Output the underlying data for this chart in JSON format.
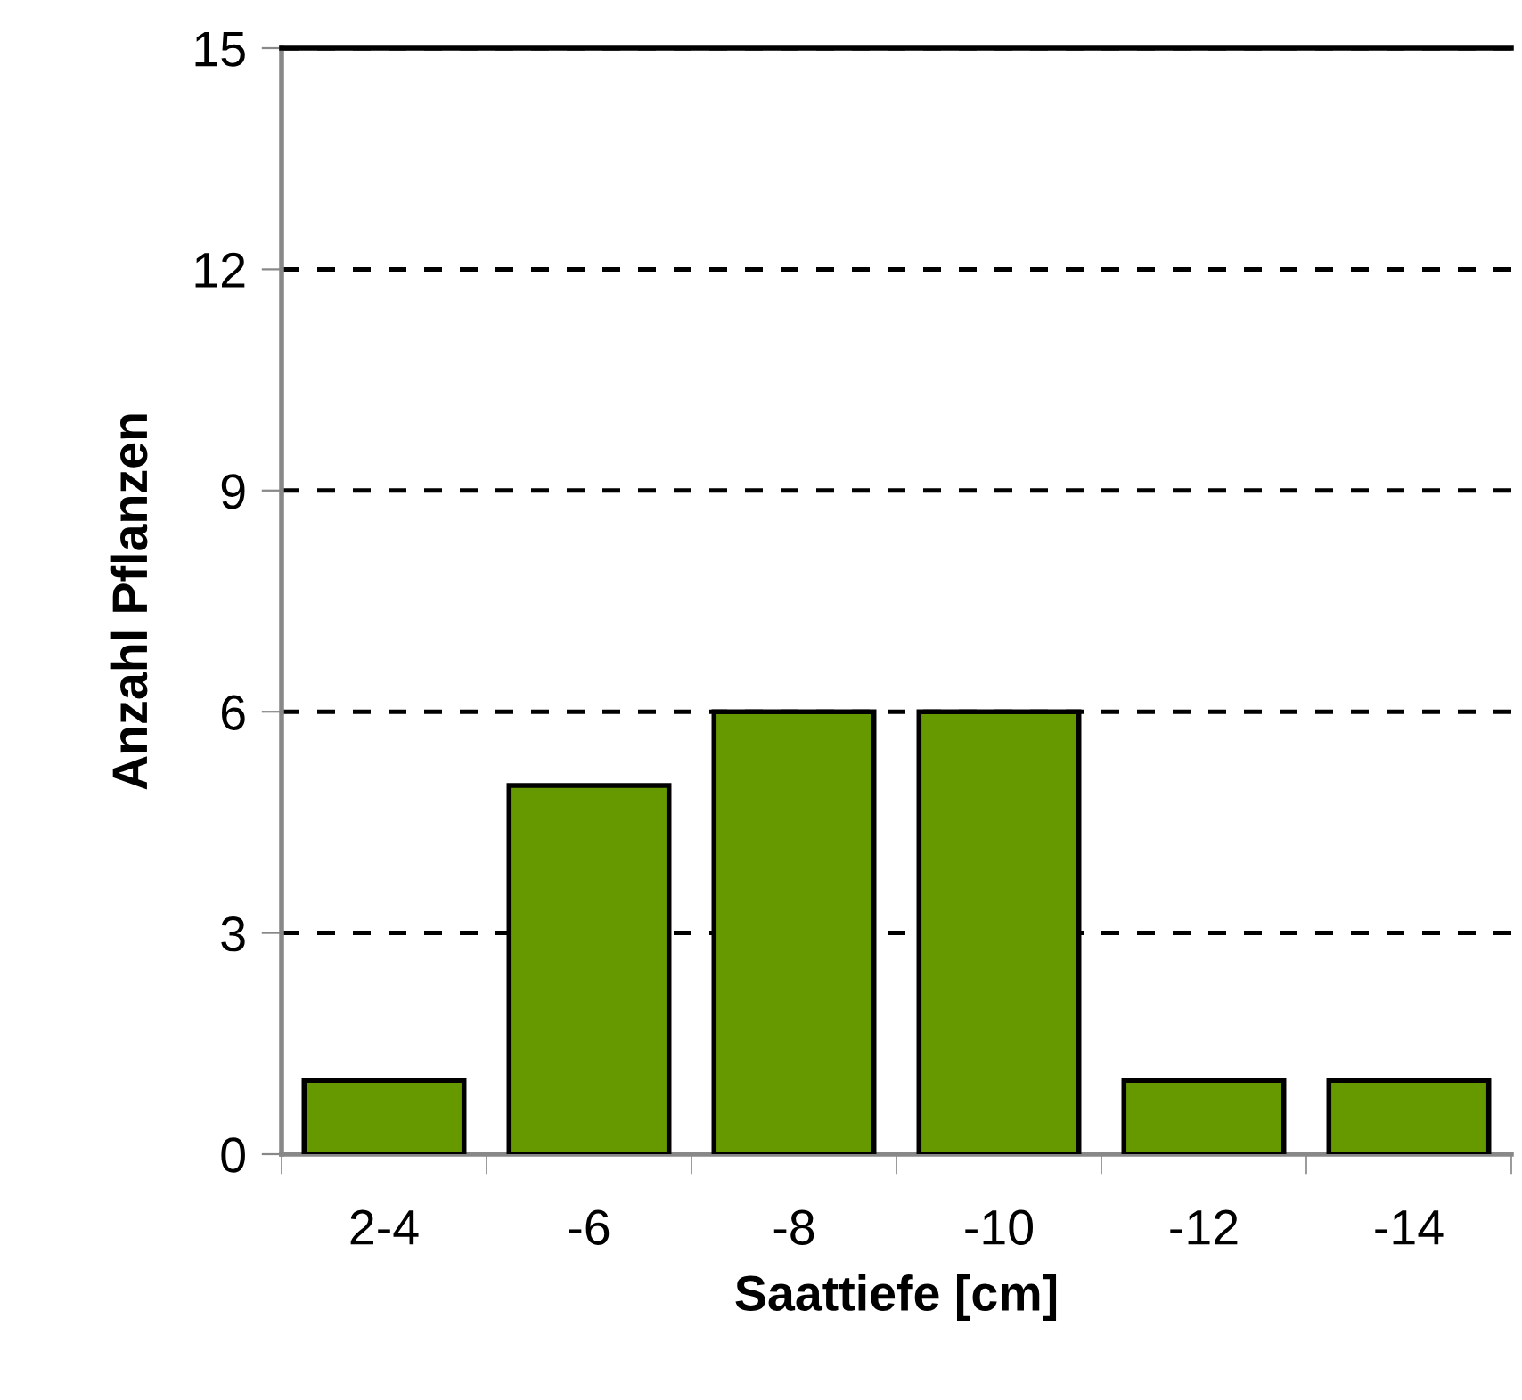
{
  "chart_data": {
    "type": "bar",
    "xlabel": "Saattiefe [cm]",
    "ylabel": "Anzahl Pflanzen",
    "categories": [
      "2-4",
      "-6",
      "-8",
      "-10",
      "-12",
      "-14"
    ],
    "values": [
      1,
      5,
      6,
      6,
      1,
      1
    ],
    "color": "#669900",
    "ylim": [
      0,
      15
    ],
    "yticks": [
      0,
      3,
      6,
      9,
      12,
      15
    ],
    "grid": "y",
    "legend": false
  }
}
